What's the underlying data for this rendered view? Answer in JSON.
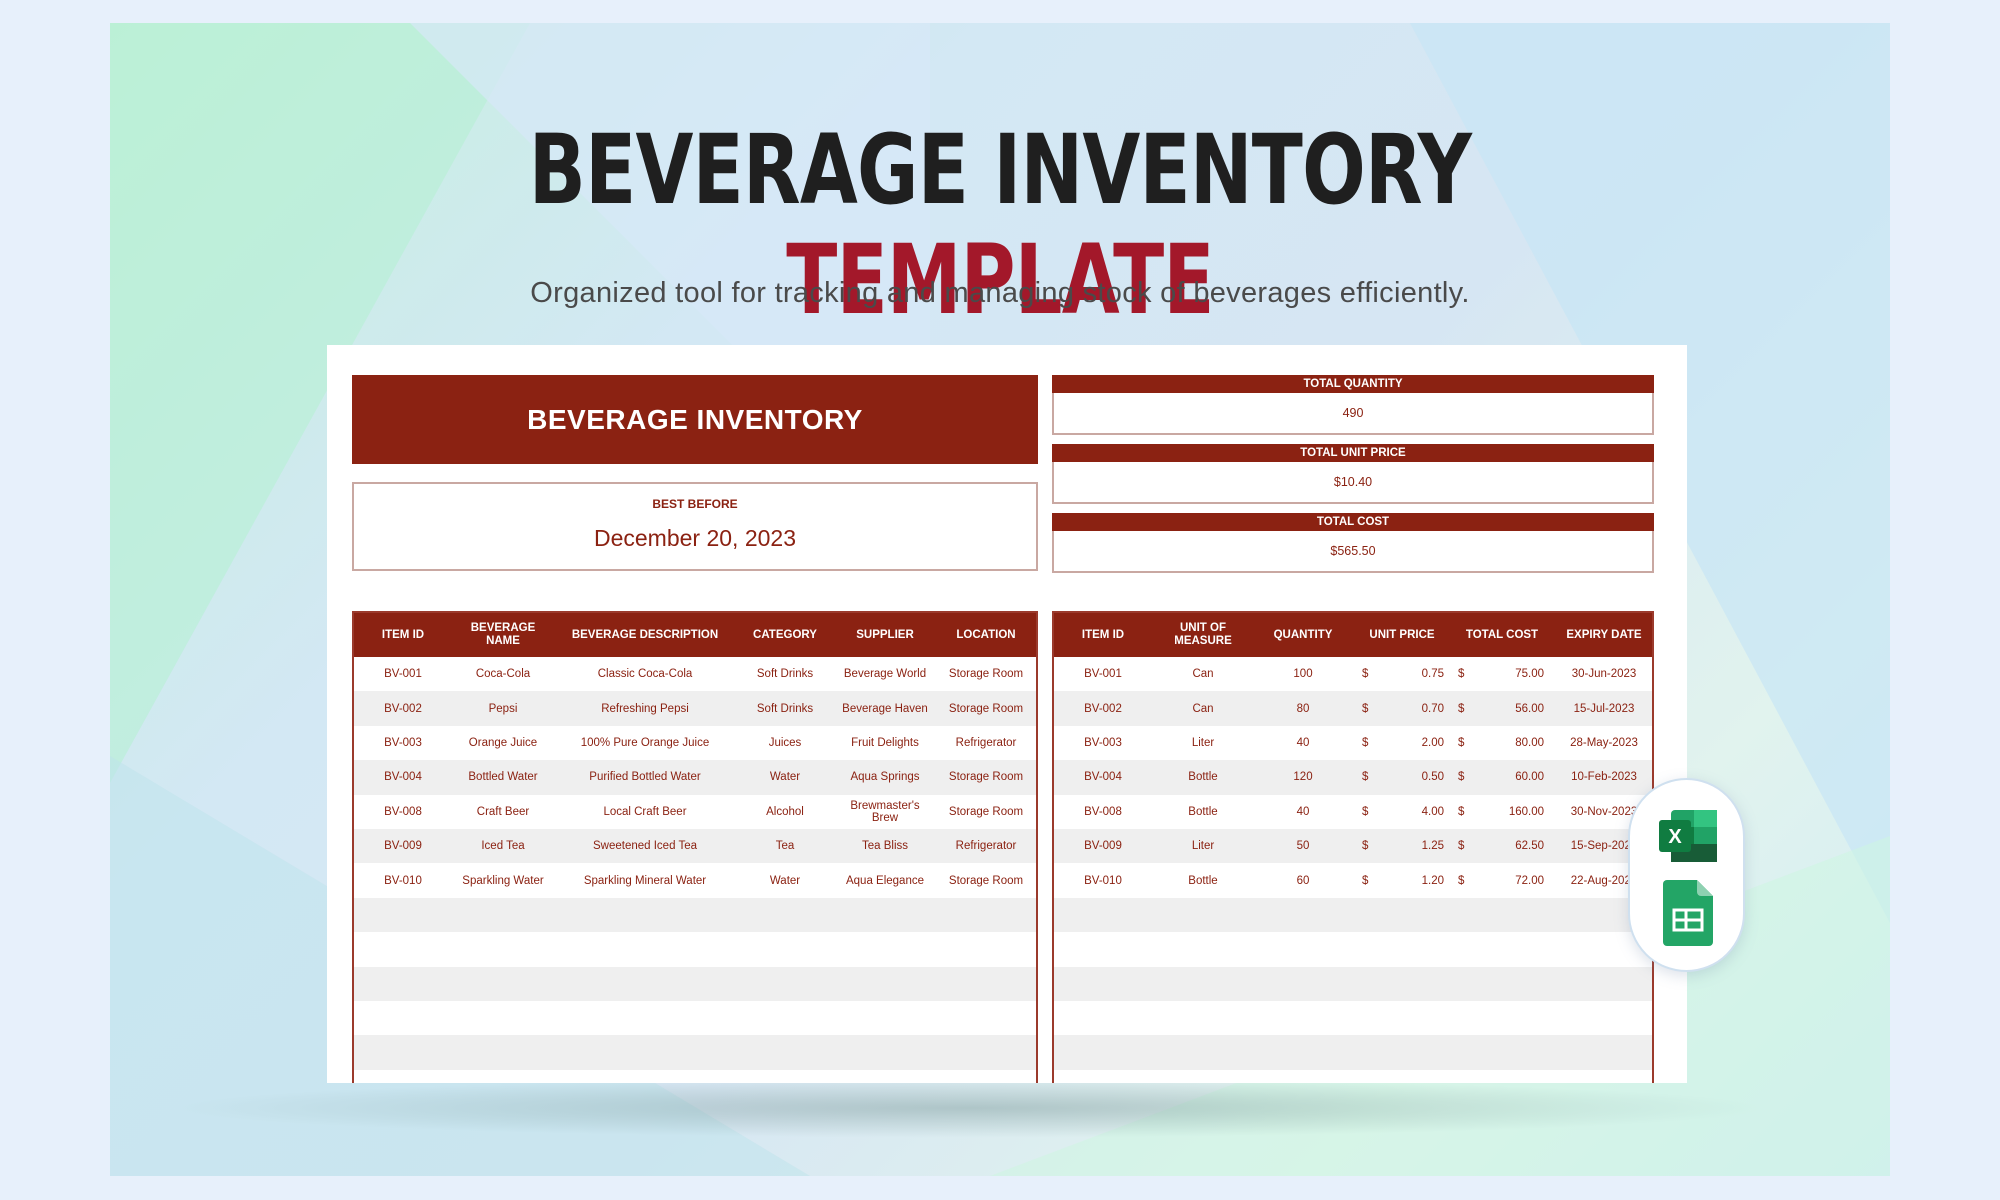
{
  "page": {
    "title_main": "BEVERAGE INVENTORY",
    "title_accent": "TEMPLATE",
    "subtitle": "Organized tool for tracking and managing stock of beverages efficiently.",
    "accent_color": "#a3182a",
    "brand_color": "#8b2212"
  },
  "sheet": {
    "banner": "BEVERAGE INVENTORY",
    "best_before_label": "BEST BEFORE",
    "best_before_value": "December 20, 2023",
    "stats": [
      {
        "label": "TOTAL QUANTITY",
        "value": "490"
      },
      {
        "label": "TOTAL UNIT PRICE",
        "value": "$10.40"
      },
      {
        "label": "TOTAL COST",
        "value": "$565.50"
      }
    ],
    "left_headers": [
      "ITEM ID",
      "BEVERAGE NAME",
      "BEVERAGE DESCRIPTION",
      "CATEGORY",
      "SUPPLIER",
      "LOCATION"
    ],
    "right_headers": [
      "ITEM ID",
      "UNIT OF MEASURE",
      "QUANTITY",
      "UNIT PRICE",
      "TOTAL COST",
      "EXPIRY DATE"
    ],
    "currency_symbol": "$",
    "rows": [
      {
        "id": "BV-001",
        "name": "Coca-Cola",
        "desc": "Classic Coca-Cola",
        "cat": "Soft Drinks",
        "supplier": "Beverage World",
        "loc": "Storage Room",
        "uom": "Can",
        "qty": "100",
        "price": "0.75",
        "total": "75.00",
        "expiry": "30-Jun-2023"
      },
      {
        "id": "BV-002",
        "name": "Pepsi",
        "desc": "Refreshing Pepsi",
        "cat": "Soft Drinks",
        "supplier": "Beverage Haven",
        "loc": "Storage Room",
        "uom": "Can",
        "qty": "80",
        "price": "0.70",
        "total": "56.00",
        "expiry": "15-Jul-2023"
      },
      {
        "id": "BV-003",
        "name": "Orange Juice",
        "desc": "100% Pure Orange Juice",
        "cat": "Juices",
        "supplier": "Fruit Delights",
        "loc": "Refrigerator",
        "uom": "Liter",
        "qty": "40",
        "price": "2.00",
        "total": "80.00",
        "expiry": "28-May-2023"
      },
      {
        "id": "BV-004",
        "name": "Bottled Water",
        "desc": "Purified Bottled Water",
        "cat": "Water",
        "supplier": "Aqua Springs",
        "loc": "Storage Room",
        "uom": "Bottle",
        "qty": "120",
        "price": "0.50",
        "total": "60.00",
        "expiry": "10-Feb-2023"
      },
      {
        "id": "BV-008",
        "name": "Craft Beer",
        "desc": "Local Craft Beer",
        "cat": "Alcohol",
        "supplier": "Brewmaster's Brew",
        "loc": "Storage Room",
        "uom": "Bottle",
        "qty": "40",
        "price": "4.00",
        "total": "160.00",
        "expiry": "30-Nov-2023"
      },
      {
        "id": "BV-009",
        "name": "Iced Tea",
        "desc": "Sweetened Iced Tea",
        "cat": "Tea",
        "supplier": "Tea Bliss",
        "loc": "Refrigerator",
        "uom": "Liter",
        "qty": "50",
        "price": "1.25",
        "total": "62.50",
        "expiry": "15-Sep-2023"
      },
      {
        "id": "BV-010",
        "name": "Sparkling Water",
        "desc": "Sparkling Mineral Water",
        "cat": "Water",
        "supplier": "Aqua Elegance",
        "loc": "Storage Room",
        "uom": "Bottle",
        "qty": "60",
        "price": "1.20",
        "total": "72.00",
        "expiry": "22-Aug-2023"
      }
    ],
    "empty_rows": 6
  },
  "badge": {
    "excel_letter": "X",
    "excel_color": "#1d6f42",
    "sheets_color": "#23a566"
  }
}
